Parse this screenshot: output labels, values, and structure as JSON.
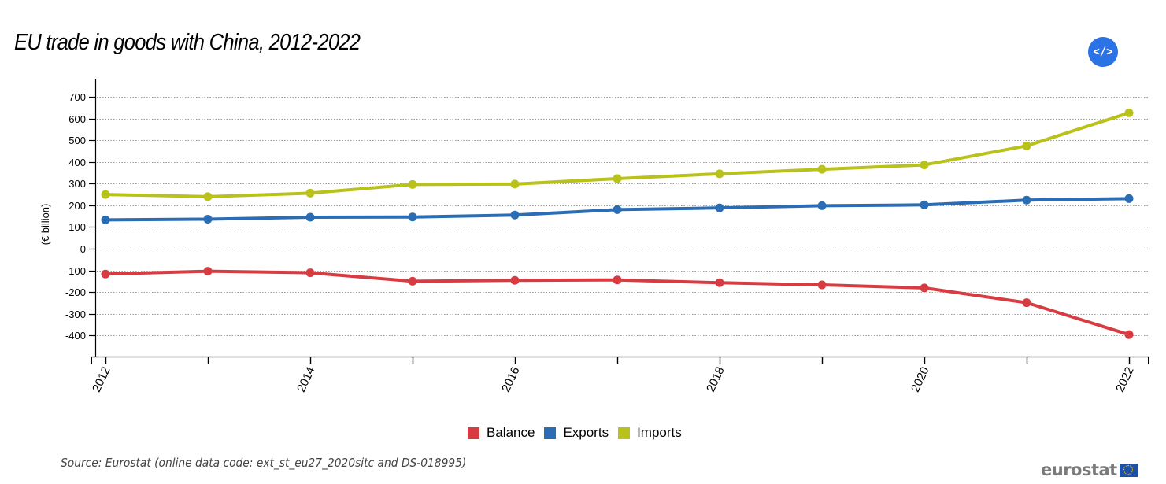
{
  "header": {
    "title": "EU trade in goods with China, 2012-2022",
    "embed_button_label": "</>"
  },
  "colors": {
    "balance": "#d73c43",
    "exports": "#2a6db5",
    "imports": "#b8c21b",
    "embed_button": "#2a72e5"
  },
  "footer": {
    "source": "Source: Eurostat (online data code: ext_st_eu27_2020sitc and DS-018995)",
    "logo_text": "eurostat"
  },
  "chart_data": {
    "type": "line",
    "title": "EU trade in goods with China, 2012-2022",
    "xlabel": "",
    "ylabel": "(€ billion)",
    "x": [
      2012,
      2013,
      2014,
      2015,
      2016,
      2017,
      2018,
      2019,
      2020,
      2021,
      2022
    ],
    "x_tick_labels": [
      "2012",
      "2014",
      "2016",
      "2018",
      "2020",
      "2022"
    ],
    "y_ticks": [
      700,
      600,
      500,
      400,
      300,
      200,
      100,
      0,
      -100,
      -200,
      -300,
      -400
    ],
    "ylim": [
      -500,
      770
    ],
    "grid": "horizontal dotted",
    "legend_position": "bottom-center",
    "series": [
      {
        "name": "Balance",
        "color": "#d73c43",
        "values": [
          -117,
          -104,
          -111,
          -150,
          -146,
          -144,
          -157,
          -167,
          -181,
          -249,
          -396
        ]
      },
      {
        "name": "Exports",
        "color": "#2a6db5",
        "values": [
          133,
          136,
          145,
          146,
          155,
          180,
          188,
          198,
          202,
          224,
          231
        ]
      },
      {
        "name": "Imports",
        "color": "#b8c21b",
        "values": [
          250,
          240,
          256,
          296,
          298,
          323,
          345,
          366,
          386,
          474,
          626
        ]
      }
    ]
  }
}
